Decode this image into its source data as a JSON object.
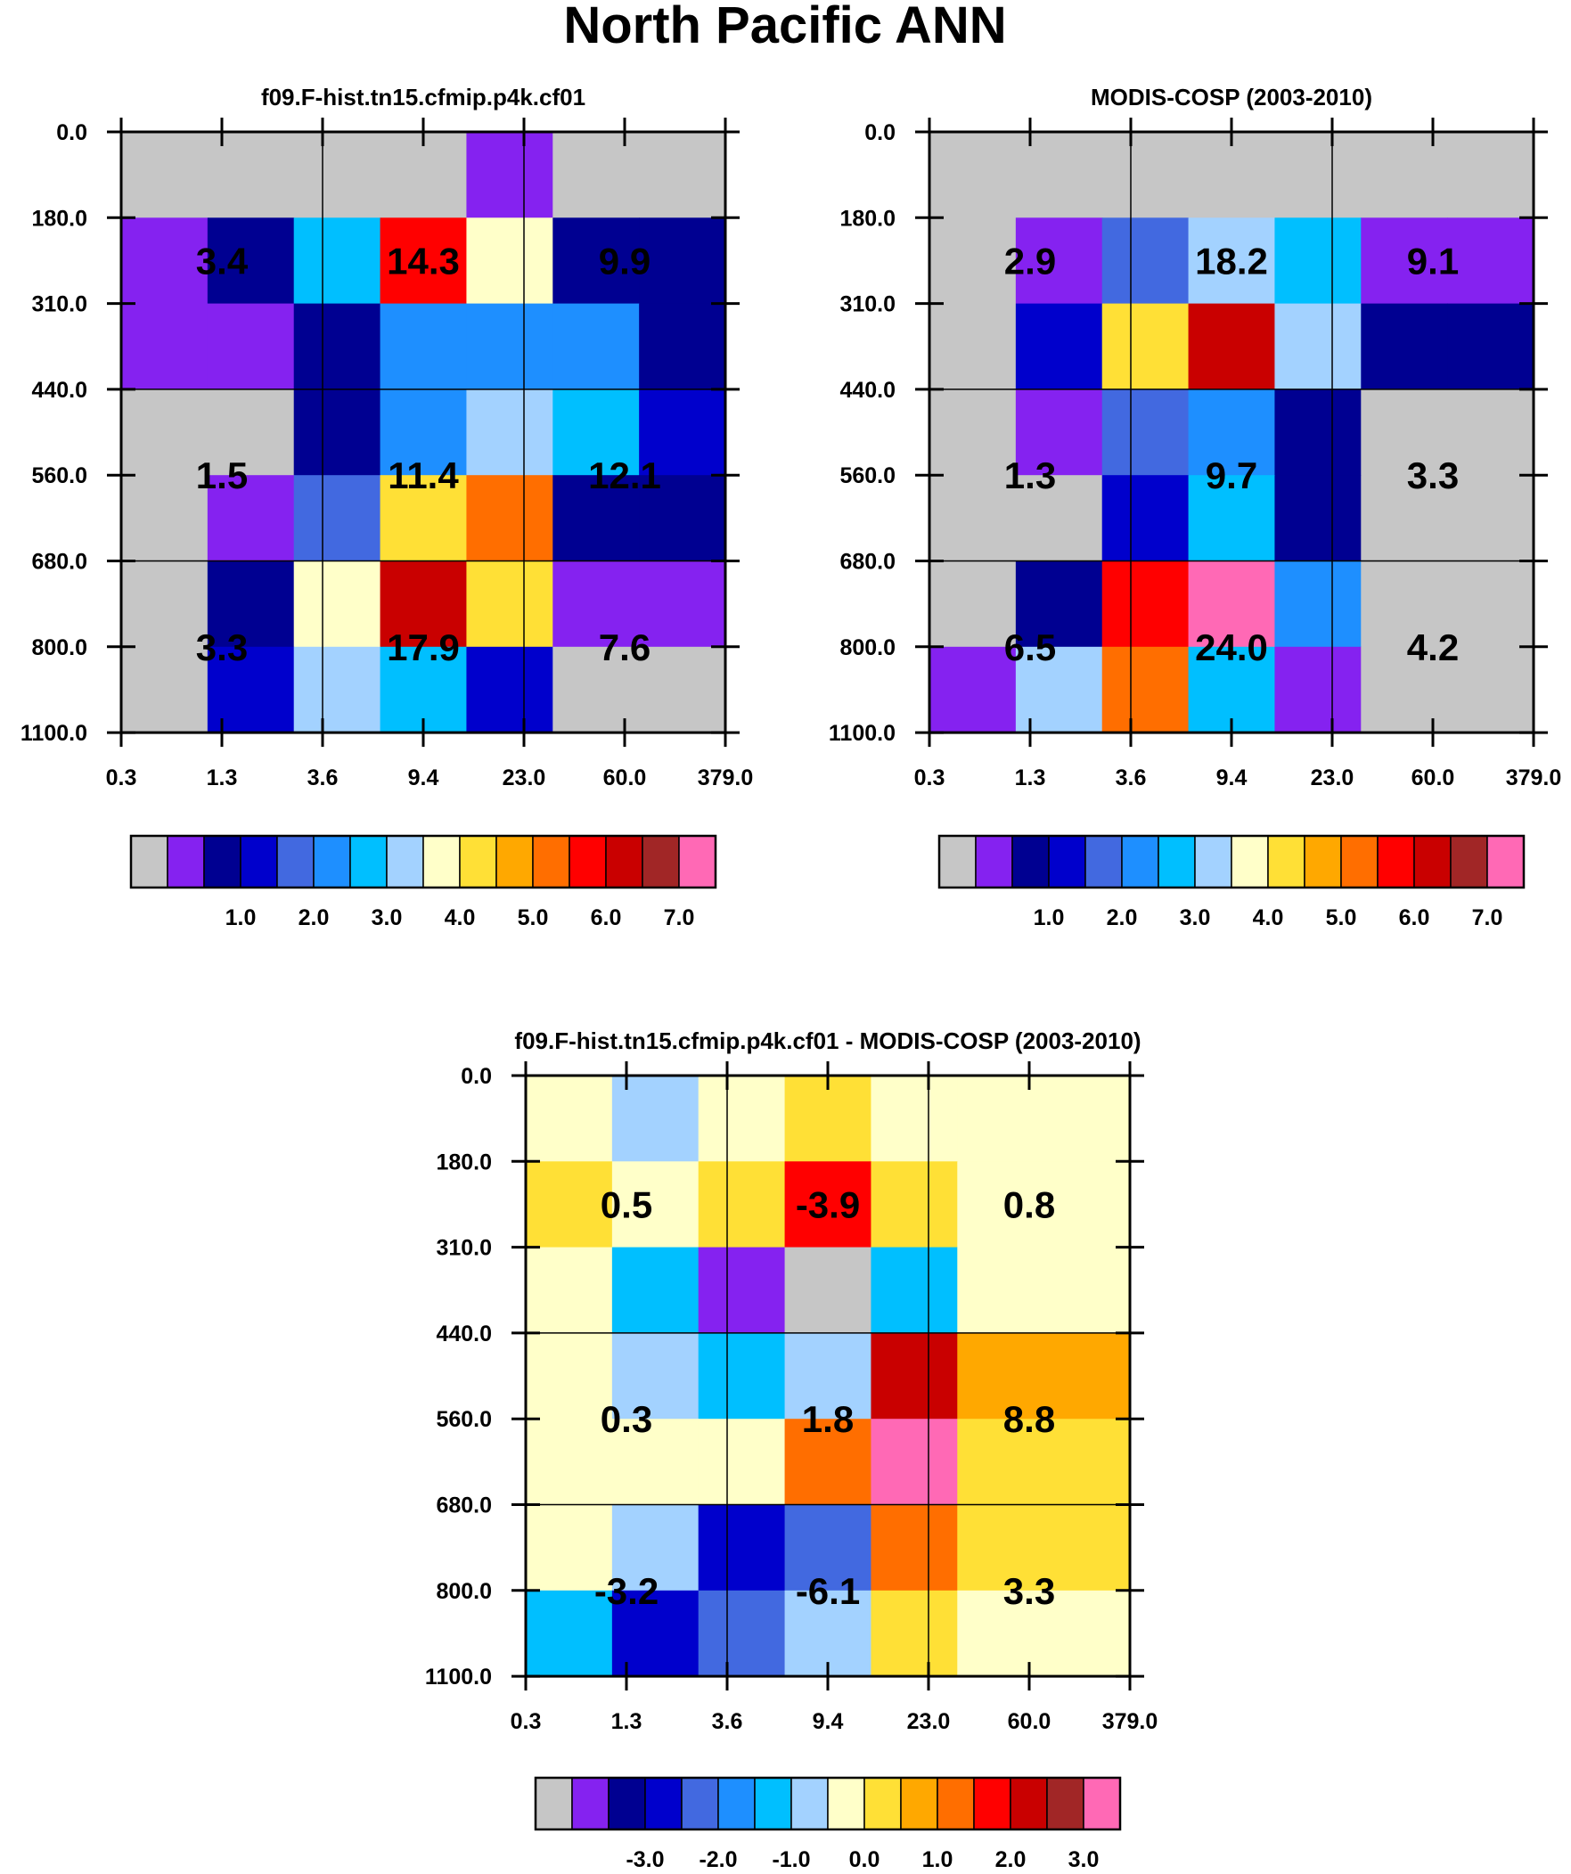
{
  "main_title": "North Pacific ANN",
  "chart_data": [
    {
      "type": "heatmap",
      "title": "f09.F-hist.tn15.cfmip.p4k.cf01",
      "x_tick_labels": [
        "0.3",
        "1.3",
        "3.6",
        "9.4",
        "23.0",
        "60.0",
        "379.0"
      ],
      "y_tick_labels": [
        "0.0",
        "180.0",
        "310.0",
        "440.0",
        "560.0",
        "680.0",
        "800.0",
        "1100.0"
      ],
      "cell_levels": [
        [
          0,
          0,
          0,
          0,
          1,
          0,
          0
        ],
        [
          1,
          2,
          6,
          12,
          8,
          2,
          2
        ],
        [
          1,
          1,
          2,
          5,
          5,
          5,
          2
        ],
        [
          0,
          0,
          2,
          5,
          7,
          6,
          3
        ],
        [
          0,
          1,
          4,
          9,
          11,
          2,
          2
        ],
        [
          0,
          2,
          8,
          13,
          9,
          1,
          1
        ],
        [
          0,
          3,
          7,
          6,
          3,
          0,
          0
        ]
      ],
      "group_values": [
        [
          "3.4",
          "14.3",
          "9.9"
        ],
        [
          "1.5",
          "11.4",
          "12.1"
        ],
        [
          "3.3",
          "17.9",
          "7.6"
        ]
      ],
      "colorbar_labels": [
        "1.0",
        "2.0",
        "3.0",
        "4.0",
        "5.0",
        "6.0",
        "7.0"
      ]
    },
    {
      "type": "heatmap",
      "title": "MODIS-COSP (2003-2010)",
      "x_tick_labels": [
        "0.3",
        "1.3",
        "3.6",
        "9.4",
        "23.0",
        "60.0",
        "379.0"
      ],
      "y_tick_labels": [
        "0.0",
        "180.0",
        "310.0",
        "440.0",
        "560.0",
        "680.0",
        "800.0",
        "1100.0"
      ],
      "cell_levels": [
        [
          0,
          0,
          0,
          0,
          0,
          0,
          0
        ],
        [
          0,
          1,
          4,
          7,
          6,
          1,
          1
        ],
        [
          0,
          3,
          9,
          13,
          7,
          2,
          2
        ],
        [
          0,
          1,
          4,
          5,
          2,
          0,
          0
        ],
        [
          0,
          0,
          3,
          6,
          2,
          0,
          0
        ],
        [
          0,
          2,
          12,
          15,
          5,
          0,
          0
        ],
        [
          1,
          7,
          11,
          6,
          1,
          0,
          0
        ]
      ],
      "group_values": [
        [
          "2.9",
          "18.2",
          "9.1"
        ],
        [
          "1.3",
          "9.7",
          "3.3"
        ],
        [
          "6.5",
          "24.0",
          "4.2"
        ]
      ],
      "colorbar_labels": [
        "1.0",
        "2.0",
        "3.0",
        "4.0",
        "5.0",
        "6.0",
        "7.0"
      ]
    },
    {
      "type": "heatmap",
      "title": "f09.F-hist.tn15.cfmip.p4k.cf01 - MODIS-COSP (2003-2010)",
      "x_tick_labels": [
        "0.3",
        "1.3",
        "3.6",
        "9.4",
        "23.0",
        "60.0",
        "379.0"
      ],
      "y_tick_labels": [
        "0.0",
        "180.0",
        "310.0",
        "440.0",
        "560.0",
        "680.0",
        "800.0",
        "1100.0"
      ],
      "cell_levels": [
        [
          8,
          7,
          8,
          9,
          8,
          8,
          8
        ],
        [
          9,
          8,
          9,
          12,
          9,
          8,
          8
        ],
        [
          8,
          6,
          1,
          0,
          6,
          8,
          8
        ],
        [
          8,
          7,
          6,
          7,
          13,
          10,
          10
        ],
        [
          8,
          8,
          8,
          11,
          15,
          9,
          9
        ],
        [
          8,
          7,
          3,
          4,
          11,
          9,
          9
        ],
        [
          6,
          3,
          4,
          7,
          9,
          8,
          8
        ]
      ],
      "group_values": [
        [
          "0.5",
          "-3.9",
          "0.8"
        ],
        [
          "0.3",
          "1.8",
          "8.8"
        ],
        [
          "-3.2",
          "-6.1",
          "3.3"
        ]
      ],
      "colorbar_labels": [
        "-3.0",
        "-2.0",
        "-1.0",
        "0.0",
        "1.0",
        "2.0",
        "3.0"
      ]
    }
  ],
  "palette": [
    "#c6c6c6",
    "#8522f0",
    "#000091",
    "#0000cc",
    "#4269e0",
    "#1e8fff",
    "#00bfff",
    "#a3d2ff",
    "#ffffc9",
    "#ffe036",
    "#ffa800",
    "#ff6e00",
    "#ff0000",
    "#c90000",
    "#a12626",
    "#ff69b5"
  ]
}
